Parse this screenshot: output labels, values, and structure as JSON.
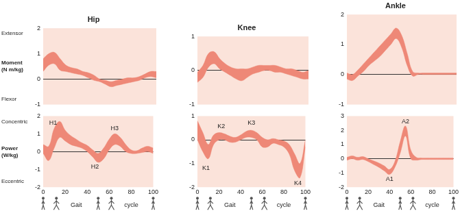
{
  "chart_data": [
    {
      "type": "line",
      "title": "Hip",
      "ylabel": "Moment (N m/kg)",
      "ylabel_top": "Extensor",
      "ylabel_bottom": "Flexor",
      "x": [
        0,
        5,
        10,
        15,
        20,
        25,
        30,
        35,
        40,
        45,
        50,
        55,
        60,
        65,
        70,
        75,
        80,
        85,
        90,
        95,
        100
      ],
      "series": [
        {
          "color": "#ee8877",
          "low": [
            0.3,
            0.55,
            0.6,
            0.35,
            0.3,
            0.25,
            0.2,
            0.15,
            0.05,
            -0.05,
            -0.1,
            -0.2,
            -0.3,
            -0.25,
            -0.2,
            -0.15,
            -0.1,
            -0.05,
            0.05,
            0.1,
            0.05
          ],
          "high": [
            0.8,
            1.0,
            1.05,
            0.8,
            0.55,
            0.45,
            0.4,
            0.3,
            0.25,
            0.15,
            0.0,
            -0.05,
            -0.1,
            -0.05,
            0.0,
            0.05,
            0.05,
            0.1,
            0.2,
            0.3,
            0.3
          ]
        }
      ],
      "xlim": [
        0,
        100
      ],
      "xticks": [
        0,
        20,
        40,
        60,
        80,
        100
      ],
      "ylim": [
        -1,
        2
      ],
      "yticks": [
        -1,
        0,
        1,
        2
      ],
      "grid": false,
      "tick_labels": "y"
    },
    {
      "type": "line",
      "ylabel": "Power (W/kg)",
      "ylabel_top": "Concentric",
      "ylabel_bottom": "Eccentric",
      "xlabel": "Gait cycle",
      "x": [
        0,
        5,
        10,
        15,
        20,
        25,
        30,
        35,
        40,
        45,
        50,
        55,
        60,
        65,
        70,
        75,
        80,
        85,
        90,
        95,
        100
      ],
      "series": [
        {
          "color": "#ee8877",
          "low": [
            -0.1,
            -0.5,
            0.2,
            0.8,
            0.6,
            0.4,
            0.3,
            0.2,
            0.0,
            -0.3,
            -0.6,
            -0.4,
            0.1,
            0.4,
            0.3,
            0.0,
            -0.1,
            -0.1,
            -0.05,
            0.0,
            -0.1
          ],
          "high": [
            0.4,
            0.3,
            1.3,
            1.7,
            1.2,
            0.9,
            0.7,
            0.5,
            0.35,
            0.1,
            -0.1,
            0.2,
            0.7,
            1.0,
            0.8,
            0.4,
            0.1,
            0.05,
            0.2,
            0.3,
            0.2
          ]
        }
      ],
      "annotations": [
        {
          "text": "H1",
          "x": 9,
          "y": 1.6
        },
        {
          "text": "H2",
          "x": 47,
          "y": -0.85
        },
        {
          "text": "H3",
          "x": 65,
          "y": 1.3
        }
      ],
      "xlim": [
        0,
        100
      ],
      "xticks": [
        0,
        20,
        40,
        60,
        80,
        100
      ],
      "ylim": [
        -2,
        2
      ],
      "yticks": [
        -2,
        -1,
        0,
        1,
        2
      ],
      "grid": false
    },
    {
      "type": "line",
      "title": "Knee",
      "x": [
        0,
        5,
        10,
        15,
        20,
        25,
        30,
        35,
        40,
        45,
        50,
        55,
        60,
        65,
        70,
        75,
        80,
        85,
        90,
        95,
        100
      ],
      "series": [
        {
          "color": "#ee8877",
          "low": [
            -0.35,
            -0.2,
            0.1,
            0.2,
            0.05,
            -0.05,
            -0.15,
            -0.25,
            -0.3,
            -0.2,
            -0.1,
            -0.05,
            0.0,
            0.0,
            -0.05,
            -0.05,
            -0.1,
            -0.15,
            -0.2,
            -0.25,
            -0.25
          ],
          "high": [
            -0.05,
            0.15,
            0.5,
            0.55,
            0.35,
            0.2,
            0.1,
            0.05,
            0.05,
            0.05,
            0.1,
            0.15,
            0.15,
            0.15,
            0.15,
            0.1,
            0.05,
            0.05,
            0.0,
            -0.05,
            0.0
          ]
        }
      ],
      "xlim": [
        0,
        100
      ],
      "xticks": [
        0,
        20,
        40,
        60,
        80,
        100
      ],
      "ylim": [
        -1,
        1
      ],
      "yticks": [
        -1,
        0,
        1
      ],
      "grid": false,
      "tick_labels": "y"
    },
    {
      "type": "line",
      "xlabel": "Gait cycle",
      "x": [
        0,
        5,
        10,
        15,
        20,
        25,
        30,
        35,
        40,
        45,
        50,
        55,
        60,
        65,
        70,
        75,
        80,
        85,
        90,
        95,
        100
      ],
      "series": [
        {
          "color": "#ee8877",
          "low": [
            0.0,
            -0.5,
            -0.8,
            -0.2,
            0.0,
            0.0,
            -0.1,
            -0.1,
            0.0,
            0.1,
            0.1,
            0.0,
            -0.3,
            -0.3,
            -0.15,
            -0.2,
            -0.3,
            -0.6,
            -1.3,
            -1.6,
            -0.3
          ],
          "high": [
            0.8,
            0.3,
            -0.2,
            0.2,
            0.3,
            0.25,
            0.15,
            0.1,
            0.2,
            0.35,
            0.4,
            0.3,
            0.1,
            0.0,
            0.05,
            0.0,
            -0.05,
            -0.2,
            -0.6,
            -1.0,
            0.0
          ]
        }
      ],
      "annotations": [
        {
          "text": "K1",
          "x": 8,
          "y": -1.2
        },
        {
          "text": "K2",
          "x": 22,
          "y": 0.55
        },
        {
          "text": "K3",
          "x": 50,
          "y": 0.7
        },
        {
          "text": "K4",
          "x": 93,
          "y": -1.85
        }
      ],
      "xlim": [
        0,
        100
      ],
      "xticks": [
        0,
        20,
        40,
        60,
        80,
        100
      ],
      "ylim": [
        -2,
        1
      ],
      "yticks": [
        -2,
        -1,
        0,
        1
      ],
      "grid": false
    },
    {
      "type": "line",
      "title": "Ankle",
      "x": [
        0,
        5,
        10,
        15,
        20,
        25,
        30,
        35,
        40,
        45,
        50,
        55,
        60,
        65,
        70,
        75,
        80,
        85,
        90,
        95,
        100
      ],
      "series": [
        {
          "color": "#ee8877",
          "low": [
            -0.15,
            -0.2,
            -0.05,
            0.1,
            0.3,
            0.45,
            0.6,
            0.8,
            1.0,
            1.2,
            0.9,
            0.3,
            -0.05,
            0.0,
            0.0,
            0.0,
            0.0,
            0.0,
            0.0,
            0.0,
            0.0
          ],
          "high": [
            0.05,
            0.0,
            0.15,
            0.35,
            0.55,
            0.75,
            0.95,
            1.15,
            1.35,
            1.55,
            1.3,
            0.7,
            0.1,
            0.05,
            0.05,
            0.05,
            0.05,
            0.05,
            0.05,
            0.05,
            0.05
          ]
        }
      ],
      "xlim": [
        0,
        100
      ],
      "xticks": [
        0,
        20,
        40,
        60,
        80,
        100
      ],
      "ylim": [
        -1,
        2
      ],
      "yticks": [
        -1,
        0,
        1,
        2
      ],
      "grid": false,
      "tick_labels": "y"
    },
    {
      "type": "line",
      "xlabel": "Gait cycle",
      "x": [
        0,
        5,
        10,
        15,
        20,
        25,
        30,
        35,
        40,
        45,
        50,
        55,
        60,
        65,
        70,
        75,
        80,
        85,
        90,
        95,
        100
      ],
      "series": [
        {
          "color": "#ee8877",
          "low": [
            -0.1,
            0.0,
            -0.1,
            -0.05,
            -0.2,
            -0.4,
            -0.6,
            -0.85,
            -1.1,
            -0.6,
            0.4,
            1.6,
            0.0,
            -0.1,
            -0.05,
            -0.05,
            -0.05,
            -0.05,
            -0.05,
            -0.05,
            -0.05
          ],
          "high": [
            0.1,
            0.2,
            0.1,
            0.15,
            0.0,
            -0.15,
            -0.3,
            -0.5,
            -0.75,
            -0.2,
            1.2,
            2.3,
            0.6,
            0.1,
            0.05,
            0.05,
            0.05,
            0.05,
            0.05,
            0.05,
            0.05
          ]
        }
      ],
      "annotations": [
        {
          "text": "A1",
          "x": 40,
          "y": -1.45
        },
        {
          "text": "A2",
          "x": 55,
          "y": 2.6
        }
      ],
      "xlim": [
        0,
        100
      ],
      "xticks": [
        0,
        20,
        40,
        60,
        80,
        100
      ],
      "ylim": [
        -2,
        3
      ],
      "yticks": [
        -2,
        -1,
        0,
        1,
        2,
        3
      ],
      "grid": false
    }
  ]
}
